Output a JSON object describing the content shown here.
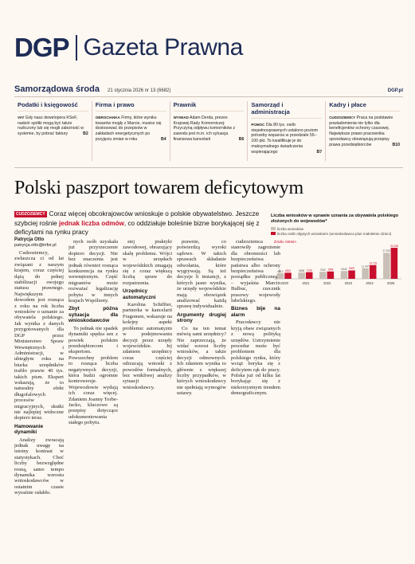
{
  "masthead": {
    "brand": "DGP",
    "title": "Gazeta Prawna"
  },
  "issue": {
    "name": "Samorządowa środa",
    "date": "21 stycznia 2026 nr 13 (6682)",
    "site": "DGP.pl"
  },
  "sections": [
    {
      "head": "Podatki i księgowość",
      "tag": "VAT",
      "text": "Gdy nasz dewelopera KSeF, nadzór spółki mogą być także rozliczony lub się mogli zależność w systemie, by pobrać faktury",
      "page": "B2"
    },
    {
      "head": "Firma i prawo",
      "tag": "Obrocianka",
      "text": "Firmy, które wyniku towarów mogły z Marcie, musisz się dostosować do przepisów w zakładach energetycznych po przyjęciu zmian w roku",
      "page": "B4"
    },
    {
      "head": "Prawnik",
      "tag": "Wywiad",
      "text": "Adam Derda, prezes Krajowej Rady Komorniczej: Przyczyną odpływu komorników z zawodu jest m.in. ich sytuacja finansowa kancelarii",
      "page": "B6"
    },
    {
      "head": "Samorząd i administracja",
      "tag": "Pomoc",
      "text": "Dla 80 tys. osób niepełnosprawnych ustalono poziom potrzeby wsparcia w przedziale 55–100 pkt. To kwalifikuje je do maksymalnego świadczenia wspierającego",
      "page": "B7"
    },
    {
      "head": "Kadry i płace",
      "tag": "Cudzoziemcy",
      "text": "Praca na podstawie powiadomienia nie tylko dla beneficjentów ochrony czasowej. Największe prawo pracownika sprzedawcy obowiązują przepisy prawa przedsiębiorców",
      "page": "B10"
    }
  ],
  "article": {
    "headline": "Polski paszport towarem deficytowym",
    "lead_tag": "CUDZOZIEMCY",
    "lead_1": "Coraz więcej obcokrajowców wnioskuje o polskie obywatelstwo. Jeszcze szybciej rośnie ",
    "lead_em": "jednak liczba odmów",
    "lead_2": ", co oddziałuje boleśnie bizne borykającej się z deficytami na rynku pracy",
    "author": "Patrycja Otto",
    "author_email": "patrycja.otto@infor.pl",
    "col1": "Cudzoziemcy, zwłaszcza ci od lat związani z naszym krajem, coraz częściej dążą do pełnej stabilizacji swojego statusu prawnego. Największym dowodem jest rosnąca z roku na rok liczba wniosków o uznanie za obywatela polskiego. Jak wynika z danych przygotowanych dla DGP przez Ministerstwo Spraw Wewnętrznych i Administracji, w ubiegłym roku na biurka urzędników trafiło prawie 40 tys. takich pism. Ekspert wskazują, że to naturalny efekt długofalowych procesów migracyjnych, skutki nie najlepiej widoczne dopiero teraz.",
    "col1_head": "Hamowanie dynamiki",
    "col1b": "Analizy zwracają jednak uwagę na istotny kontrast w statystykach. Choć liczby bezwzględne rosną, samo tempo dynamika wzrostu wnioskodawców w ostatnim czasie wyraźnie osłabło.",
    "col2": "nych osób uzyskała już przyrzeczenie dopiero decyzji. Nie bez znaczenia jest jednak również rosnąca konkurencja na rynku wewnętrznym. Część migrantów może rozważać legalizację pobytu w innych krajach Wspólnoty.",
    "col2_head": "Zbyt późna sytuacja dla wnioskodawców",
    "col2b": "To jednak nie spadek dynamiki spędza sen z powiek polskim przedsiębiorcom i ekspertom. Powszechny problem to rosnąca liczba negatywnych decyzji, która budzi ogromne kontrowersje. Wojewodowie wydają ich coraz więcej. Zdaniem Joanny Torbe-Jacko, kluczowe są przepisy dotyczące udokumentowania stałego pobytu.",
    "col3": "stej praktyki zawodowej, obrazujący skalę problemu. Wójci w urzędach wojewódzkich zmagają się z coraz większą liczbą spraw do rozpatrzenia.",
    "col3_head": "Urzędnicy automatyczni",
    "col3b": "Karolina Schiffter, partnerka w kancelarii Fragomen, wskazuje na kolejny aspekt problemu: automatyzm w podejmowaniu decyzji przez urzędy wojewódzkie. Jej zdaniem urzędnicy coraz częściej odrzucają wnioski z powodów formalnych, bez wnikliwej analizy sytuacji wnioskodawcy.",
    "col4": "prawnie, co potwierdzą wyroki sądowe. W takich sprawach składanie odwołania, które wygrywają. Są też decyzje li instancji, z których jasno wynika, że urzędy wojewódzkie mają obowiązek analizować każdą sprawę indywidualnie.",
    "col4_head": "Argumenty drugiej strony",
    "col4b": "Co na ten temat mówią sami urzędnicy? Nie zaprzeczają, że widać wzrost liczby wniosków, a także decyzji odmownych. Ich zdaniem wynika to głównie z większej liczby przypadków, w których wnioskodawcy nie spełniają wymogów ustawy.",
    "col5": "cudzoziemca stanowiły zagrożenie dla obronności lub bezpieczeństwa państwa albo ochrony bezpieczeństwa i porządku publicznego – wyjaśnia Marcin Bulbuc, rzecznik prasowy wojewody lubelskiego.",
    "col5_head": "Biznes bije na alarm",
    "col5b": "Pracodawcy nie kryją obaw związanych z nową polityką urzędów. Ustrzymienie procedur może być problemem dla polskiego rynku, który wciąż boryka się z deficytem rąk do pracy. Polska już od kilku lat borykając się z niekorzystnym trendem demograficznym."
  },
  "chart_data": {
    "type": "bar",
    "title": "Liczba wniosków w sprawie uznania za obywatela polskiego złożonych do wojewodów*",
    "legend": [
      "liczba wniosków",
      "liczba osób objętych wnioskiem (wnioskodawca plus małoletnie dzieci)"
    ],
    "source_label": "Źródło: MSWiA",
    "categories": [
      "2020",
      "2021",
      "2022",
      "2023",
      "2024",
      "2025"
    ],
    "series": [
      {
        "name": "liczba wniosków",
        "values": [
          6012,
          6698,
          7532,
          8346,
          11447,
          27875
        ]
      },
      {
        "name": "liczba osób objętych wnioskiem (wnioskodawca plus małoletnie dzieci)",
        "values": [
          6524,
          7146,
          7854,
          9009,
          14718,
          33258
        ]
      }
    ],
    "colors": [
      "#c8c0b6",
      "#c8102e"
    ],
    "ylim": [
      0,
      35000
    ],
    "xticks": [
      "2020",
      "2021",
      "2022",
      "2023",
      "2024",
      "2025"
    ]
  }
}
